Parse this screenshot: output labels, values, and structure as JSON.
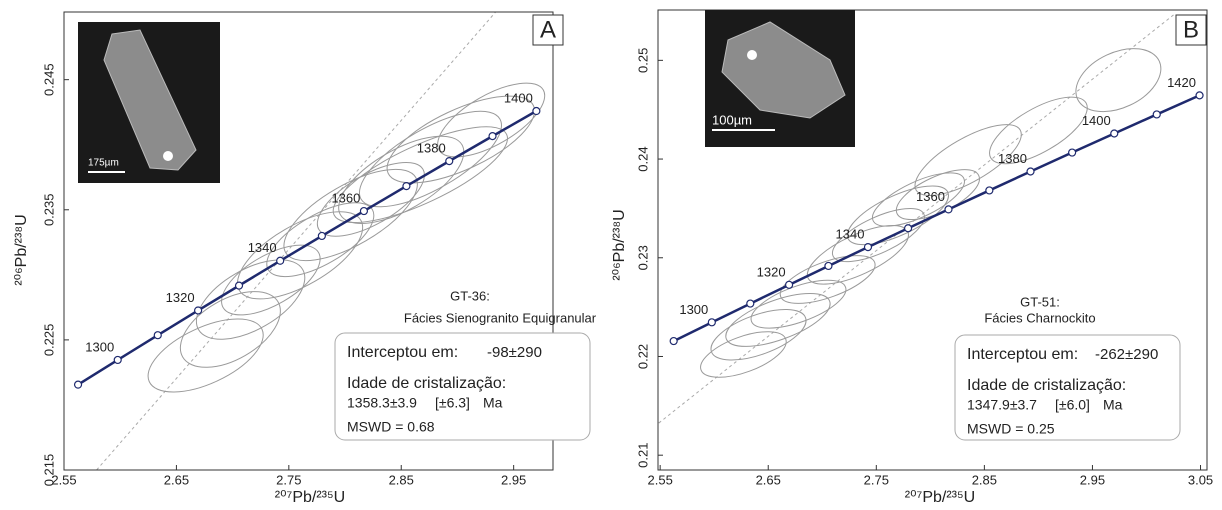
{
  "chart_data": [
    {
      "type": "concordia",
      "panel": "A",
      "sample": "GT-36:",
      "facies": "Fácies Sienogranito Equigranular",
      "xlabel": "²⁰⁷Pb/²³⁵U",
      "ylabel": "²⁰⁶Pb/²³⁸U",
      "xlim": [
        2.55,
        2.985
      ],
      "xticks": [
        2.55,
        2.65,
        2.75,
        2.85,
        2.95
      ],
      "ylim": [
        0.215,
        0.2502
      ],
      "yticks": [
        0.215,
        0.225,
        0.235,
        0.245
      ],
      "concordia": {
        "color": "#1f2a6e",
        "x": [
          2.5625,
          2.5978,
          2.6334,
          2.6693,
          2.7057,
          2.7423,
          2.7794,
          2.8168,
          2.8546,
          2.8927,
          2.9312,
          2.9702
        ],
        "y": [
          0.22156,
          0.22346,
          0.22536,
          0.22726,
          0.22917,
          0.23108,
          0.23299,
          0.2349,
          0.23682,
          0.23874,
          0.24066,
          0.24259
        ],
        "labels": [
          null,
          1300,
          null,
          1320,
          null,
          1340,
          null,
          1360,
          null,
          1380,
          null,
          1400
        ]
      },
      "discordia": {
        "x": [
          2.579,
          2.934
        ],
        "y": [
          0.215,
          0.2502
        ]
      },
      "ellipses": {
        "color": "#9a9a9a",
        "x": [
          2.676,
          2.698,
          2.716,
          2.734,
          2.76,
          2.778,
          2.805,
          2.823,
          2.85,
          2.876,
          2.903,
          2.93,
          2.867
        ],
        "y": [
          0.2238,
          0.2258,
          0.2281,
          0.2296,
          0.2315,
          0.2327,
          0.2346,
          0.2358,
          0.2373,
          0.2389,
          0.2404,
          0.2419,
          0.2377
        ],
        "rx": [
          0.0553,
          0.049,
          0.0535,
          0.049,
          0.0624,
          0.0535,
          0.0668,
          0.0535,
          0.0624,
          0.0713,
          0.0713,
          0.0535,
          0.0847
        ],
        "ry": [
          0.00215,
          0.0023,
          0.0023,
          0.0019,
          0.0023,
          0.0019,
          0.0023,
          0.0019,
          0.0023,
          0.0023,
          0.0023,
          0.0019,
          0.0022
        ],
        "angle": [
          -25,
          -30,
          -30,
          -30,
          -30,
          -30,
          -30,
          -30,
          -30,
          -30,
          -25,
          -30,
          -25
        ]
      },
      "intercept_label": "Interceptou em:",
      "intercept_value": "-98±290",
      "age_label": "Idade de cristalização:",
      "age_value": "1358.3±3.9",
      "age_error": "[±6.3]",
      "age_unit": "Ma",
      "mswd": "MSWD = 0.68",
      "scale_bar": "175µm"
    },
    {
      "type": "concordia",
      "panel": "B",
      "sample": "GT-51:",
      "facies": "Fácies Charnockito",
      "xlabel": "²⁰⁷Pb/²³⁵U",
      "ylabel": "²⁰⁶Pb/²³⁸U",
      "xlim": [
        2.548,
        3.056
      ],
      "xticks": [
        2.55,
        2.65,
        2.75,
        2.85,
        2.95,
        3.05
      ],
      "ylim": [
        0.2085,
        0.2551
      ],
      "yticks": [
        0.21,
        0.22,
        0.23,
        0.24,
        0.25
      ],
      "concordia": {
        "color": "#1f2a6e",
        "x": [
          2.5625,
          2.5978,
          2.6334,
          2.6693,
          2.7057,
          2.7423,
          2.7794,
          2.8168,
          2.8546,
          2.8927,
          2.9312,
          2.9702,
          3.0095,
          3.0491
        ],
        "y": [
          0.22156,
          0.22346,
          0.22536,
          0.22726,
          0.22917,
          0.23108,
          0.23299,
          0.2349,
          0.23682,
          0.23874,
          0.24066,
          0.24259,
          0.24452,
          0.24645
        ],
        "labels": [
          null,
          1300,
          null,
          1320,
          null,
          1340,
          null,
          1360,
          null,
          1380,
          null,
          1400,
          null,
          1420
        ]
      },
      "discordia": {
        "x": [
          2.54,
          3.025
        ],
        "y": [
          0.2125,
          0.2546
        ]
      },
      "ellipses": {
        "color": "#9a9a9a",
        "x": [
          2.627,
          2.641,
          2.659,
          2.678,
          2.705,
          2.733,
          2.752,
          2.77,
          2.789,
          2.807,
          2.835,
          2.9,
          2.974
        ],
        "y": [
          0.2202,
          0.2222,
          0.2237,
          0.2253,
          0.2278,
          0.2303,
          0.2323,
          0.2343,
          0.2359,
          0.2364,
          0.2399,
          0.2429,
          0.248
        ],
        "rx": [
          0.0417,
          0.0463,
          0.0509,
          0.0463,
          0.0463,
          0.0509,
          0.0463,
          0.0509,
          0.0463,
          0.0417,
          0.0556,
          0.0509,
          0.0417
        ],
        "ry": [
          0.0018,
          0.002,
          0.002,
          0.0018,
          0.0018,
          0.002,
          0.0018,
          0.002,
          0.0018,
          0.0018,
          0.0022,
          0.0022,
          0.0028
        ],
        "angle": [
          -20,
          -20,
          -20,
          -20,
          -20,
          -25,
          -25,
          -25,
          -25,
          -25,
          -30,
          -30,
          -25
        ]
      },
      "intercept_label": "Interceptou em:",
      "intercept_value": "-262±290",
      "age_label": "Idade de cristalização:",
      "age_value": "1347.9±3.7",
      "age_error": "[±6.0]",
      "age_unit": "Ma",
      "mswd": "MSWD = 0.25",
      "scale_bar": "100µm"
    }
  ]
}
